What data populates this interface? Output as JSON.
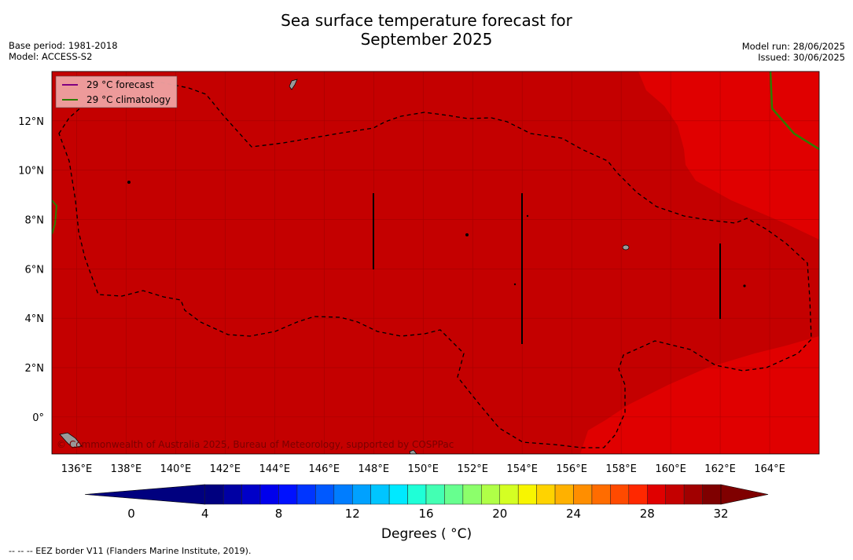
{
  "header": {
    "title_line1": "Sea surface temperature forecast for",
    "title_line2": "September 2025",
    "base_period": "Base period: 1981-2018",
    "model": "Model: ACCESS-S2",
    "model_run": "Model run: 28/06/2025",
    "issued": "Issued: 30/06/2025"
  },
  "legend": {
    "forecast_label": "29 °C  forecast",
    "forecast_color": "#800080",
    "climatology_label": "29 °C  climatology",
    "climatology_color": "#2e7d00"
  },
  "map": {
    "lon_ticks": [
      "136°E",
      "138°E",
      "140°E",
      "142°E",
      "144°E",
      "146°E",
      "148°E",
      "150°E",
      "152°E",
      "154°E",
      "156°E",
      "158°E",
      "160°E",
      "162°E",
      "164°E"
    ],
    "lat_ticks": [
      "12°N",
      "10°N",
      "8°N",
      "6°N",
      "4°N",
      "2°N",
      "0°"
    ],
    "lon_range": [
      135,
      166
    ],
    "lat_range": [
      -1.5,
      14
    ],
    "colors": {
      "band_29_30": "#e00000",
      "band_30_31": "#c40000",
      "land": "#999999",
      "eez_line": "#000000"
    },
    "copyright": "© Commonwealth of Australia 2025, Bureau of Meteorology, supported by COSPPac"
  },
  "colorbar": {
    "ticks": [
      "0",
      "4",
      "8",
      "12",
      "16",
      "20",
      "24",
      "28",
      "32"
    ],
    "min": 0,
    "max": 32,
    "step": 1,
    "title": "Degrees ( °C)",
    "colors": [
      "#00007f",
      "#0000a3",
      "#0000c8",
      "#0000ec",
      "#0011ff",
      "#0035ff",
      "#0059ff",
      "#007dff",
      "#00a1ff",
      "#00c5ff",
      "#00e9ff",
      "#1fffd7",
      "#43ffb3",
      "#67ff8f",
      "#8cff6b",
      "#b0ff47",
      "#d4ff23",
      "#f8f500",
      "#ffd300",
      "#ffb100",
      "#ff8e00",
      "#ff6c00",
      "#ff4a00",
      "#ff2800",
      "#e00000",
      "#c40000",
      "#a10000",
      "#7f0000"
    ],
    "under_color": "#00007f",
    "over_color": "#7f0000"
  },
  "footer": {
    "text": "--  --  -- EEZ border V11 (Flanders Marine Institute, 2019)."
  }
}
